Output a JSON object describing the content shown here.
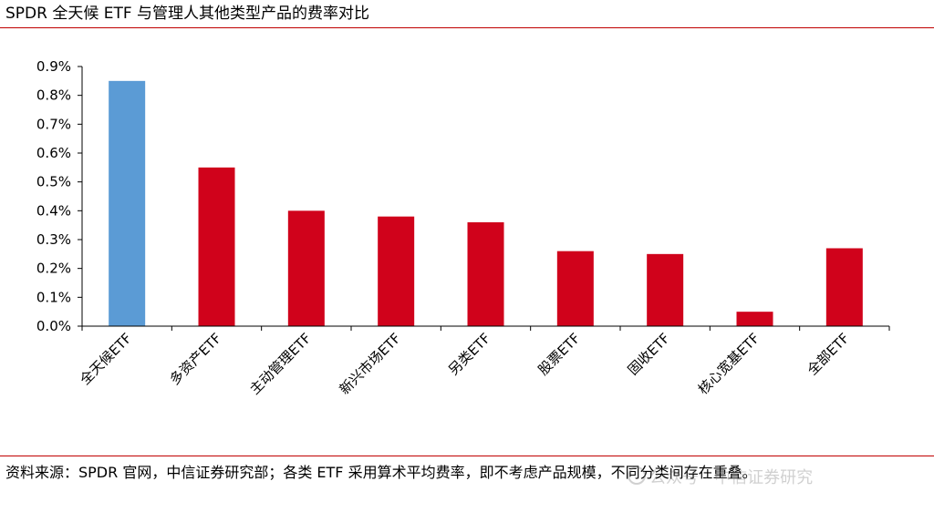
{
  "header": {
    "title": "SPDR 全天候 ETF 与管理人其他类型产品的费率对比"
  },
  "chart_data": {
    "type": "bar",
    "title": "",
    "xlabel": "",
    "ylabel": "",
    "categories": [
      "全天候ETF",
      "多资产ETF",
      "主动管理ETF",
      "新兴市场ETF",
      "另类ETF",
      "股票ETF",
      "固收ETF",
      "核心宽基ETF",
      "全部ETF"
    ],
    "values": [
      0.85,
      0.55,
      0.4,
      0.38,
      0.36,
      0.26,
      0.25,
      0.05,
      0.27
    ],
    "ylim": [
      0,
      0.9
    ],
    "yticks": [
      0,
      0.1,
      0.2,
      0.3,
      0.4,
      0.5,
      0.6,
      0.7,
      0.8,
      0.9
    ],
    "ytick_labels": [
      "0.0%",
      "0.1%",
      "0.2%",
      "0.3%",
      "0.4%",
      "0.5%",
      "0.6%",
      "0.7%",
      "0.8%",
      "0.9%"
    ],
    "bar_colors": [
      "#5b9bd5",
      "#d0021b",
      "#d0021b",
      "#d0021b",
      "#d0021b",
      "#d0021b",
      "#d0021b",
      "#d0021b",
      "#d0021b"
    ],
    "grid": false,
    "legend": "none"
  },
  "footer": {
    "source": "资料来源：SPDR 官网，中信证券研究部；各类 ETF 采用算术平均费率，即不考虑产品规模，不同分类间存在重叠。",
    "watermark": "公众号 · 中信证券研究"
  },
  "colors": {
    "rule": "#c00000",
    "highlight_bar": "#5b9bd5",
    "bar": "#d0021b"
  }
}
